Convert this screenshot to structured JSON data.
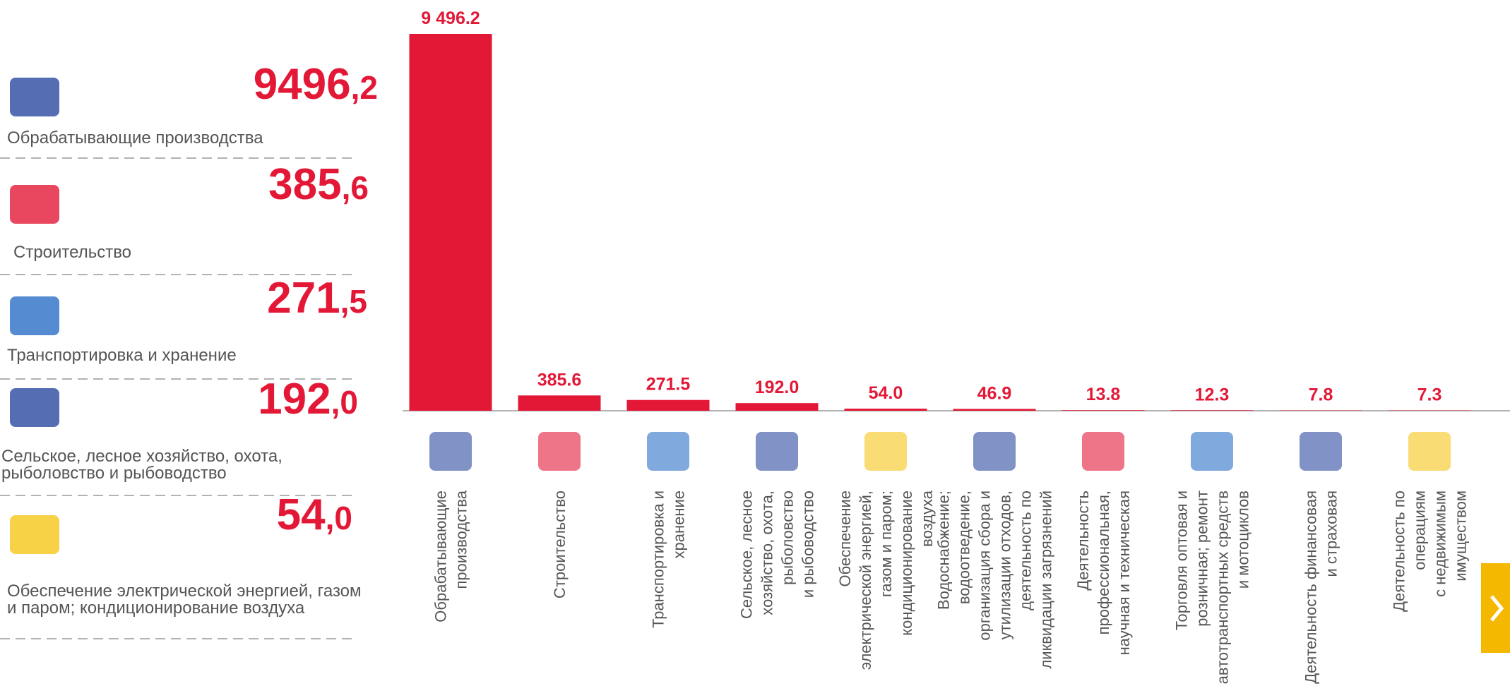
{
  "left_panel": [
    {
      "lines": [
        "Обрабатывающие производства"
      ],
      "number": [
        "9496",
        ",2"
      ]
    },
    {
      "lines": [
        "Строительство"
      ],
      "number": [
        "385",
        ",6"
      ]
    },
    {
      "lines": [
        "Транспортировка и хранение"
      ],
      "number": [
        "271",
        ",5"
      ]
    },
    {
      "lines": [
        "Сельское, лесное хозяйство, охота,",
        "рыболовство и рыбоводство"
      ],
      "number": [
        "192",
        ",0"
      ]
    },
    {
      "lines": [
        "Обеспечение электрической энергией, газом",
        "и паром; кондиционирование воздуха"
      ],
      "number": [
        "54",
        ",0"
      ]
    }
  ],
  "chart_data": {
    "type": "bar",
    "color": "#e31837",
    "categories": [
      [
        "Обрабатывающие",
        "производства"
      ],
      [
        "Строительство"
      ],
      [
        "Транспортировка и",
        "хранение"
      ],
      [
        "Сельское, лесное",
        "хозяйство, охота,",
        "рыболовство",
        "и  рыбоводство"
      ],
      [
        "Обеспечение",
        "электрической энергией,",
        "газом и паром;",
        "кондиционирование",
        "воздуха"
      ],
      [
        "Водоснабжение;",
        "водоотведение,",
        "организация сбора и",
        "утилизации отходов,",
        "деятельность по",
        "ликвидации загрязнений"
      ],
      [
        "Деятельность",
        "профессиональная,",
        "научная и техническая"
      ],
      [
        "Торговля оптовая и",
        "розничная; ремонт",
        "автотранспортных средств",
        "и мотоциклов"
      ],
      [
        "Деятельность финансовая",
        "и страховая"
      ],
      [
        "Деятельность по",
        "операциям",
        "с недвижимым",
        "имуществом"
      ]
    ],
    "values": [
      9496.2,
      385.6,
      271.5,
      192.0,
      54.0,
      46.9,
      13.8,
      12.3,
      7.8,
      7.3
    ],
    "value_labels": [
      "9 496.2",
      "385.6",
      "271.5",
      "192.0",
      "54.0",
      "46.9",
      "13.8",
      "12.3",
      "7.8",
      "7.3"
    ]
  }
}
